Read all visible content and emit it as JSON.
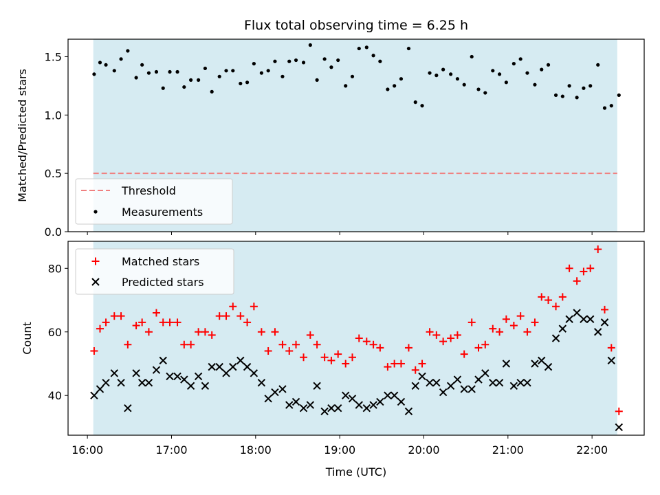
{
  "chart_data": [
    {
      "type": "scatter",
      "title": "Flux total observing time = 6.25 h",
      "xlabel": "",
      "ylabel": "Matched/Predicted stars",
      "ylim": [
        0,
        1.65
      ],
      "yticks": [
        "0.0",
        "0.5",
        "1.0",
        "1.5"
      ],
      "ytick_values": [
        0,
        0.5,
        1.0,
        1.5
      ],
      "threshold": {
        "name": "Threshold",
        "value": 0.5,
        "color": "#f08080",
        "x_start": 16.07,
        "x_end": 22.3
      },
      "observing_window": {
        "start": 16.07,
        "end": 22.3,
        "color": "#add8e6"
      },
      "legend": {
        "placement": "lower-left"
      },
      "series": [
        {
          "name": "Measurements",
          "color": "#000000",
          "points": [
            [
              16.08,
              1.35
            ],
            [
              16.15,
              1.45
            ],
            [
              16.22,
              1.43
            ],
            [
              16.32,
              1.38
            ],
            [
              16.4,
              1.48
            ],
            [
              16.48,
              1.55
            ],
            [
              16.58,
              1.32
            ],
            [
              16.65,
              1.43
            ],
            [
              16.73,
              1.36
            ],
            [
              16.82,
              1.37
            ],
            [
              16.9,
              1.23
            ],
            [
              16.98,
              1.37
            ],
            [
              17.07,
              1.37
            ],
            [
              17.15,
              1.24
            ],
            [
              17.23,
              1.3
            ],
            [
              17.32,
              1.3
            ],
            [
              17.4,
              1.4
            ],
            [
              17.48,
              1.2
            ],
            [
              17.57,
              1.33
            ],
            [
              17.65,
              1.38
            ],
            [
              17.73,
              1.38
            ],
            [
              17.82,
              1.27
            ],
            [
              17.9,
              1.28
            ],
            [
              17.98,
              1.44
            ],
            [
              18.07,
              1.36
            ],
            [
              18.15,
              1.38
            ],
            [
              18.23,
              1.46
            ],
            [
              18.32,
              1.33
            ],
            [
              18.4,
              1.46
            ],
            [
              18.48,
              1.47
            ],
            [
              18.57,
              1.45
            ],
            [
              18.65,
              1.6
            ],
            [
              18.73,
              1.3
            ],
            [
              18.82,
              1.48
            ],
            [
              18.9,
              1.41
            ],
            [
              18.98,
              1.47
            ],
            [
              19.07,
              1.25
            ],
            [
              19.15,
              1.33
            ],
            [
              19.23,
              1.57
            ],
            [
              19.32,
              1.58
            ],
            [
              19.4,
              1.51
            ],
            [
              19.48,
              1.46
            ],
            [
              19.57,
              1.22
            ],
            [
              19.65,
              1.25
            ],
            [
              19.73,
              1.31
            ],
            [
              19.82,
              1.57
            ],
            [
              19.9,
              1.11
            ],
            [
              19.98,
              1.08
            ],
            [
              20.07,
              1.36
            ],
            [
              20.15,
              1.34
            ],
            [
              20.23,
              1.39
            ],
            [
              20.32,
              1.35
            ],
            [
              20.4,
              1.31
            ],
            [
              20.48,
              1.26
            ],
            [
              20.57,
              1.5
            ],
            [
              20.65,
              1.22
            ],
            [
              20.73,
              1.19
            ],
            [
              20.82,
              1.38
            ],
            [
              20.9,
              1.35
            ],
            [
              20.98,
              1.28
            ],
            [
              21.07,
              1.44
            ],
            [
              21.15,
              1.48
            ],
            [
              21.23,
              1.36
            ],
            [
              21.32,
              1.26
            ],
            [
              21.4,
              1.39
            ],
            [
              21.48,
              1.43
            ],
            [
              21.57,
              1.17
            ],
            [
              21.65,
              1.16
            ],
            [
              21.73,
              1.25
            ],
            [
              21.82,
              1.15
            ],
            [
              21.9,
              1.23
            ],
            [
              21.98,
              1.25
            ],
            [
              22.07,
              1.43
            ],
            [
              22.15,
              1.06
            ],
            [
              22.23,
              1.08
            ],
            [
              22.32,
              1.17
            ]
          ]
        }
      ]
    },
    {
      "type": "scatter",
      "title": "",
      "xlabel": "Time (UTC)",
      "ylabel": "Count",
      "xlim": [
        15.77,
        22.62
      ],
      "xticks": [
        "16:00",
        "17:00",
        "18:00",
        "19:00",
        "20:00",
        "21:00",
        "22:00"
      ],
      "xtick_values": [
        16,
        17,
        18,
        19,
        20,
        21,
        22
      ],
      "ylim": [
        27.5,
        88.5
      ],
      "yticks": [
        "40",
        "60",
        "80"
      ],
      "ytick_values": [
        40,
        60,
        80
      ],
      "observing_window": {
        "start": 16.07,
        "end": 22.3,
        "color": "#add8e6"
      },
      "legend": {
        "placement": "upper-left"
      },
      "series": [
        {
          "name": "Matched stars",
          "marker": "plus",
          "color": "#ff0000",
          "points": [
            [
              16.08,
              54
            ],
            [
              16.15,
              61
            ],
            [
              16.22,
              63
            ],
            [
              16.32,
              65
            ],
            [
              16.4,
              65
            ],
            [
              16.48,
              56
            ],
            [
              16.58,
              62
            ],
            [
              16.65,
              63
            ],
            [
              16.73,
              60
            ],
            [
              16.82,
              66
            ],
            [
              16.9,
              63
            ],
            [
              16.98,
              63
            ],
            [
              17.07,
              63
            ],
            [
              17.15,
              56
            ],
            [
              17.23,
              56
            ],
            [
              17.32,
              60
            ],
            [
              17.4,
              60
            ],
            [
              17.48,
              59
            ],
            [
              17.57,
              65
            ],
            [
              17.65,
              65
            ],
            [
              17.73,
              68
            ],
            [
              17.82,
              65
            ],
            [
              17.9,
              63
            ],
            [
              17.98,
              68
            ],
            [
              18.07,
              60
            ],
            [
              18.15,
              54
            ],
            [
              18.23,
              60
            ],
            [
              18.32,
              56
            ],
            [
              18.4,
              54
            ],
            [
              18.48,
              56
            ],
            [
              18.57,
              52
            ],
            [
              18.65,
              59
            ],
            [
              18.73,
              56
            ],
            [
              18.82,
              52
            ],
            [
              18.9,
              51
            ],
            [
              18.98,
              53
            ],
            [
              19.07,
              50
            ],
            [
              19.15,
              52
            ],
            [
              19.23,
              58
            ],
            [
              19.32,
              57
            ],
            [
              19.4,
              56
            ],
            [
              19.48,
              55
            ],
            [
              19.57,
              49
            ],
            [
              19.65,
              50
            ],
            [
              19.73,
              50
            ],
            [
              19.82,
              55
            ],
            [
              19.9,
              48
            ],
            [
              19.98,
              50
            ],
            [
              20.07,
              60
            ],
            [
              20.15,
              59
            ],
            [
              20.23,
              57
            ],
            [
              20.32,
              58
            ],
            [
              20.4,
              59
            ],
            [
              20.48,
              53
            ],
            [
              20.57,
              63
            ],
            [
              20.65,
              55
            ],
            [
              20.73,
              56
            ],
            [
              20.82,
              61
            ],
            [
              20.9,
              60
            ],
            [
              20.98,
              64
            ],
            [
              21.07,
              62
            ],
            [
              21.15,
              65
            ],
            [
              21.23,
              60
            ],
            [
              21.32,
              63
            ],
            [
              21.4,
              71
            ],
            [
              21.48,
              70
            ],
            [
              21.57,
              68
            ],
            [
              21.65,
              71
            ],
            [
              21.73,
              80
            ],
            [
              21.82,
              76
            ],
            [
              21.9,
              79
            ],
            [
              21.98,
              80
            ],
            [
              22.07,
              86
            ],
            [
              22.15,
              67
            ],
            [
              22.23,
              55
            ],
            [
              22.32,
              35
            ]
          ]
        },
        {
          "name": "Predicted stars",
          "marker": "x",
          "color": "#000000",
          "points": [
            [
              16.08,
              40
            ],
            [
              16.15,
              42
            ],
            [
              16.22,
              44
            ],
            [
              16.32,
              47
            ],
            [
              16.4,
              44
            ],
            [
              16.48,
              36
            ],
            [
              16.58,
              47
            ],
            [
              16.65,
              44
            ],
            [
              16.73,
              44
            ],
            [
              16.82,
              48
            ],
            [
              16.9,
              51
            ],
            [
              16.98,
              46
            ],
            [
              17.07,
              46
            ],
            [
              17.15,
              45
            ],
            [
              17.23,
              43
            ],
            [
              17.32,
              46
            ],
            [
              17.4,
              43
            ],
            [
              17.48,
              49
            ],
            [
              17.57,
              49
            ],
            [
              17.65,
              47
            ],
            [
              17.73,
              49
            ],
            [
              17.82,
              51
            ],
            [
              17.9,
              49
            ],
            [
              17.98,
              47
            ],
            [
              18.07,
              44
            ],
            [
              18.15,
              39
            ],
            [
              18.23,
              41
            ],
            [
              18.32,
              42
            ],
            [
              18.4,
              37
            ],
            [
              18.48,
              38
            ],
            [
              18.57,
              36
            ],
            [
              18.65,
              37
            ],
            [
              18.73,
              43
            ],
            [
              18.82,
              35
            ],
            [
              18.9,
              36
            ],
            [
              18.98,
              36
            ],
            [
              19.07,
              40
            ],
            [
              19.15,
              39
            ],
            [
              19.23,
              37
            ],
            [
              19.32,
              36
            ],
            [
              19.4,
              37
            ],
            [
              19.48,
              38
            ],
            [
              19.57,
              40
            ],
            [
              19.65,
              40
            ],
            [
              19.73,
              38
            ],
            [
              19.82,
              35
            ],
            [
              19.9,
              43
            ],
            [
              19.98,
              46
            ],
            [
              20.07,
              44
            ],
            [
              20.15,
              44
            ],
            [
              20.23,
              41
            ],
            [
              20.32,
              43
            ],
            [
              20.4,
              45
            ],
            [
              20.48,
              42
            ],
            [
              20.57,
              42
            ],
            [
              20.65,
              45
            ],
            [
              20.73,
              47
            ],
            [
              20.82,
              44
            ],
            [
              20.9,
              44
            ],
            [
              20.98,
              50
            ],
            [
              21.07,
              43
            ],
            [
              21.15,
              44
            ],
            [
              21.23,
              44
            ],
            [
              21.32,
              50
            ],
            [
              21.4,
              51
            ],
            [
              21.48,
              49
            ],
            [
              21.57,
              58
            ],
            [
              21.65,
              61
            ],
            [
              21.73,
              64
            ],
            [
              21.82,
              66
            ],
            [
              21.9,
              64
            ],
            [
              21.98,
              64
            ],
            [
              22.07,
              60
            ],
            [
              22.15,
              63
            ],
            [
              22.23,
              51
            ],
            [
              22.32,
              30
            ]
          ]
        }
      ]
    }
  ]
}
